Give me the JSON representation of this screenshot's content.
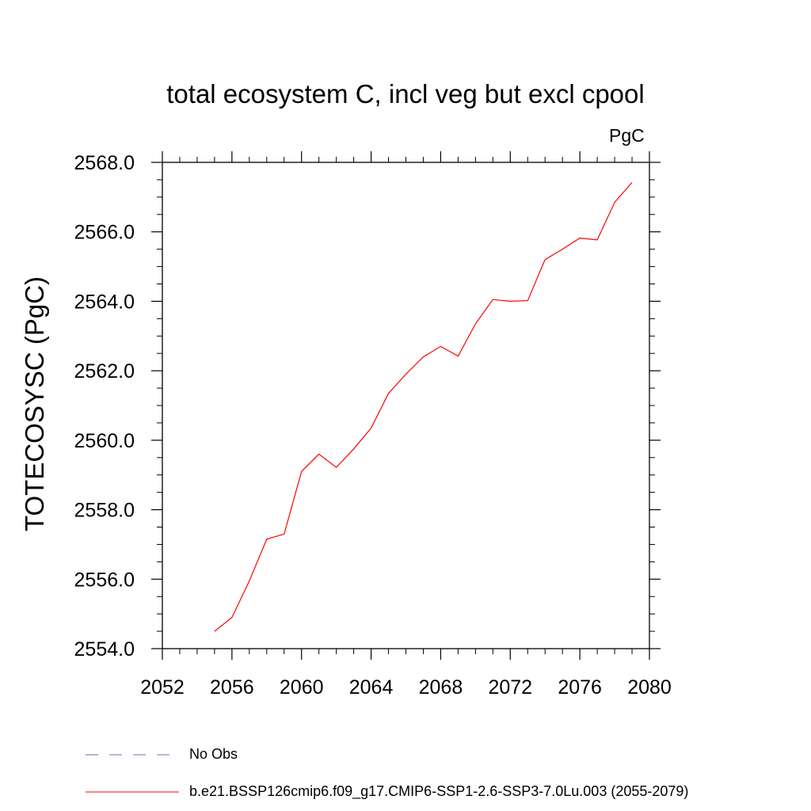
{
  "chart_data": {
    "type": "line",
    "title": "total ecosystem C, incl veg but excl cpool",
    "units_label": "PgC",
    "ylabel": "TOTECOSYSC  (PgC)",
    "xlabel": "",
    "xlim": [
      2052,
      2080
    ],
    "ylim": [
      2554.0,
      2568.0
    ],
    "x_ticks": [
      2052,
      2056,
      2060,
      2064,
      2068,
      2072,
      2076,
      2080
    ],
    "x_tick_labels": [
      "2052",
      "2056",
      "2060",
      "2064",
      "2068",
      "2072",
      "2076",
      "2080"
    ],
    "y_ticks": [
      2554,
      2556,
      2558,
      2560,
      2562,
      2564,
      2566,
      2568
    ],
    "y_tick_labels": [
      "2554.0",
      "2556.0",
      "2558.0",
      "2560.0",
      "2562.0",
      "2564.0",
      "2566.0",
      "2568.0"
    ],
    "series": [
      {
        "name": "b.e21.BSSP126cmip6.f09_g17.CMIP6-SSP1-2.6-SSP3-7.0Lu.003 (2055-2079)",
        "color": "#ff0000",
        "style": "solid",
        "x": [
          2055,
          2056,
          2057,
          2058,
          2059,
          2060,
          2061,
          2062,
          2063,
          2064,
          2065,
          2066,
          2067,
          2068,
          2069,
          2070,
          2071,
          2072,
          2073,
          2074,
          2075,
          2076,
          2077,
          2078,
          2079
        ],
        "y": [
          2554.5,
          2554.9,
          2555.95,
          2557.15,
          2557.3,
          2559.1,
          2559.6,
          2559.22,
          2559.75,
          2560.35,
          2561.35,
          2561.9,
          2562.4,
          2562.7,
          2562.42,
          2563.35,
          2564.05,
          2564.0,
          2564.02,
          2565.2,
          2565.5,
          2565.82,
          2565.77,
          2566.85,
          2567.42
        ]
      },
      {
        "name": "No Obs",
        "color": "#7b6fb5",
        "style": "dashed",
        "x": [],
        "y": []
      }
    ],
    "legend_position": "bottom"
  }
}
